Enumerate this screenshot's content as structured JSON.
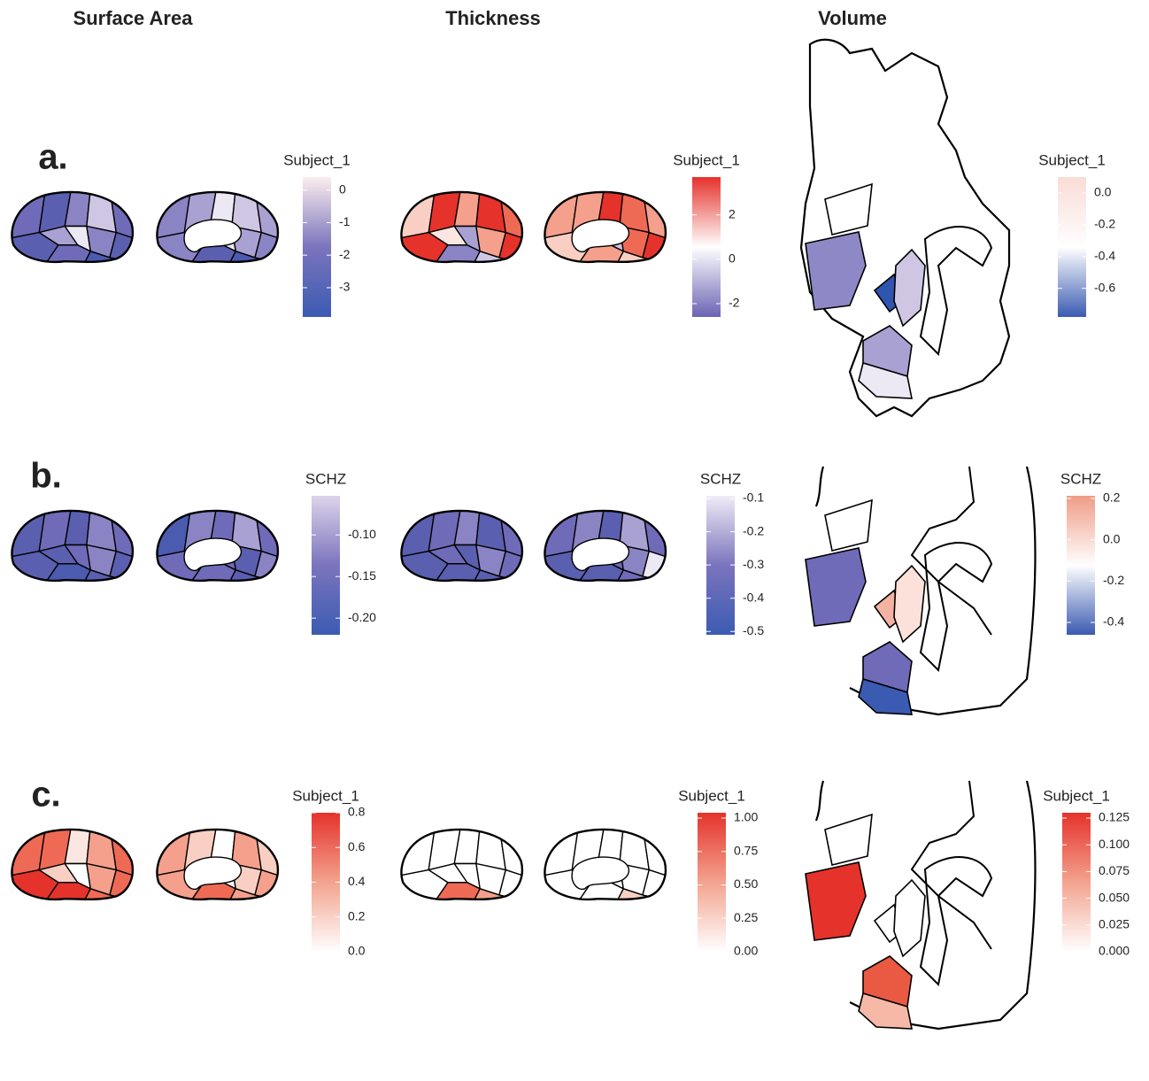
{
  "columns": [
    "Surface Area",
    "Thickness",
    "Volume"
  ],
  "rows": [
    {
      "label": "a.",
      "legends": [
        {
          "title": "Subject_1",
          "range": [
            -3.9,
            0.4
          ],
          "colors": [
            "#3b5bb2",
            "#7b74bd",
            "#fbeeee"
          ],
          "ticks": [
            0,
            -1,
            -2,
            -3
          ]
        },
        {
          "title": "Subject_1",
          "range": [
            -2.6,
            3.7
          ],
          "colors": [
            "#6b63b3",
            "#ffffff",
            "#e5322b"
          ],
          "ticks": [
            2,
            0,
            -2
          ]
        },
        {
          "title": "Subject_1",
          "range": [
            -0.78,
            0.1
          ],
          "colors": [
            "#3b5bb2",
            "#ffffff",
            "#f9dcd6"
          ],
          "ticks": [
            {
              "value": 0.0,
              "label": "0.0"
            },
            -0.2,
            -0.4,
            -0.6
          ]
        }
      ]
    },
    {
      "label": "b.",
      "legends": [
        {
          "title": "SCHZ",
          "range": [
            -0.22,
            -0.053
          ],
          "colors": [
            "#3b5bb2",
            "#7b74bd",
            "#ddd4ea"
          ],
          "ticks": [
            {
              "value": -0.1,
              "label": "-0.10"
            },
            -0.15,
            {
              "value": -0.2,
              "label": "-0.20"
            }
          ]
        },
        {
          "title": "SCHZ",
          "range": [
            -0.51,
            -0.092
          ],
          "colors": [
            "#3b5bb2",
            "#7b74bd",
            "#f0ecf6"
          ],
          "ticks": [
            -0.1,
            -0.2,
            -0.3,
            -0.4,
            -0.5
          ]
        },
        {
          "title": "SCHZ",
          "range": [
            -0.46,
            0.213
          ],
          "colors": [
            "#3b5bb2",
            "#ffffff",
            "#ef9c86"
          ],
          "ticks": [
            0.2,
            {
              "value": 0.0,
              "label": "0.0"
            },
            -0.2,
            -0.4
          ]
        }
      ]
    },
    {
      "label": "c.",
      "legends": [
        {
          "title": "Subject_1",
          "range": [
            0,
            0.8
          ],
          "colors": [
            "#ffffff",
            "#f3a38f",
            "#e5322b"
          ],
          "ticks": [
            0.8,
            0.6,
            0.4,
            0.2,
            {
              "value": 0.0,
              "label": "0.0"
            }
          ]
        },
        {
          "title": "Subject_1",
          "range": [
            0,
            1.04
          ],
          "colors": [
            "#ffffff",
            "#f3a38f",
            "#e5322b"
          ],
          "ticks": [
            {
              "value": 1.0,
              "label": "1.00"
            },
            0.75,
            {
              "value": 0.5,
              "label": "0.50"
            },
            0.25,
            {
              "value": 0.0,
              "label": "0.00"
            }
          ]
        },
        {
          "title": "Subject_1",
          "range": [
            0,
            0.13
          ],
          "colors": [
            "#ffffff",
            "#f3a38f",
            "#e5322b"
          ],
          "ticks": [
            0.125,
            {
              "value": 0.1,
              "label": "0.100"
            },
            0.075,
            {
              "value": 0.05,
              "label": "0.050"
            },
            0.025,
            {
              "value": 0.0,
              "label": "0.000"
            }
          ]
        }
      ]
    }
  ]
}
